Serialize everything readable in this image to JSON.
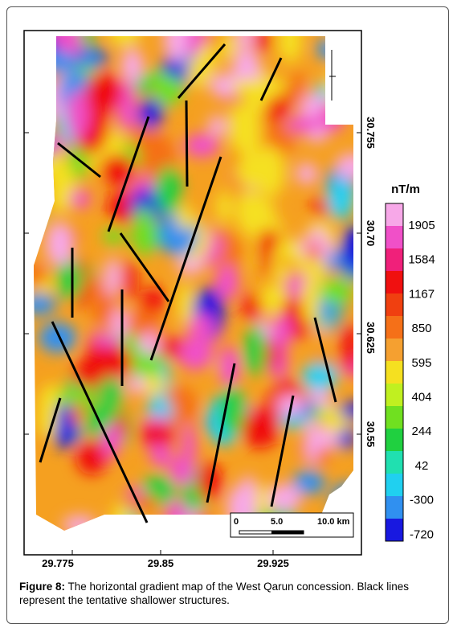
{
  "figure": {
    "map": {
      "x_ticks": [
        "29.775",
        "29.85",
        "29.925"
      ],
      "y_ticks": [
        "30.755",
        "30.70",
        "30.625",
        "30.55"
      ],
      "scale_bar": [
        "0",
        "5.0",
        "10.0 km"
      ]
    },
    "colorbar": {
      "title": "nT/m",
      "labels": [
        "1905",
        "1584",
        "1167",
        "850",
        "595",
        "404",
        "244",
        "42",
        "-300",
        "-720"
      ]
    },
    "caption": {
      "label": "Figure 8:",
      "text": " The horizontal gradient map of the West Qarun concession. Black lines represent the tentative shallower structures."
    }
  }
}
